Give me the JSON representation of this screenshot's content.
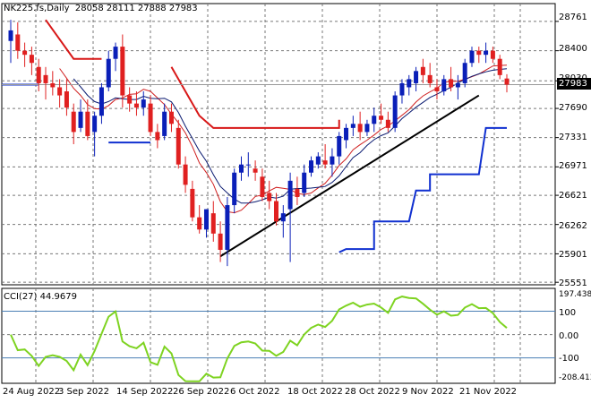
{
  "header": {
    "symbol_line": "NK225.fs,Daily  28058 28111 27888 27983",
    "cci_line": "CCI(27) 44.9679"
  },
  "last_price_label": "27983",
  "chart_data": [
    {
      "type": "candlestick",
      "title": "NK225.fs,Daily",
      "ohlc": {
        "open": 28058,
        "high": 28111,
        "low": 27888,
        "close": 27983
      },
      "y_ticks": [
        "28761",
        "28400",
        "28030",
        "27690",
        "27331",
        "26971",
        "26621",
        "26262",
        "25901",
        "25551"
      ],
      "x_ticks": [
        "24 Aug 2022",
        "3 Sep 2022",
        "14 Sep 2022",
        "26 Sep 2022",
        "6 Oct 2022",
        "18 Oct 2022",
        "28 Oct 2022",
        "9 Nov 2022",
        "21 Nov 2022"
      ],
      "ylim": [
        25520,
        28980
      ],
      "candles": [
        [
          28520,
          28780,
          28250,
          28650
        ],
        [
          28600,
          28750,
          28300,
          28400
        ],
        [
          28400,
          28500,
          28200,
          28350
        ],
        [
          28350,
          28450,
          28100,
          28250
        ],
        [
          28200,
          28300,
          27900,
          28000
        ],
        [
          28100,
          28200,
          27800,
          28000
        ],
        [
          28000,
          28150,
          27850,
          27950
        ],
        [
          27950,
          28050,
          27700,
          27850
        ],
        [
          27900,
          28050,
          27600,
          27700
        ],
        [
          27650,
          27750,
          27250,
          27400
        ],
        [
          27450,
          27800,
          27400,
          27650
        ],
        [
          27650,
          27800,
          27300,
          27350
        ],
        [
          27400,
          27650,
          27100,
          27600
        ],
        [
          27600,
          28000,
          27500,
          27950
        ],
        [
          27950,
          28400,
          27900,
          28300
        ],
        [
          28300,
          28500,
          28150,
          28450
        ],
        [
          28450,
          28600,
          27700,
          27850
        ],
        [
          27850,
          27950,
          27650,
          27750
        ],
        [
          27750,
          27900,
          27600,
          27700
        ],
        [
          27700,
          27900,
          27600,
          27800
        ],
        [
          27750,
          27850,
          27350,
          27400
        ],
        [
          27400,
          27500,
          27200,
          27300
        ],
        [
          27350,
          27750,
          27300,
          27650
        ],
        [
          27650,
          27750,
          27400,
          27500
        ],
        [
          27450,
          27550,
          26950,
          27000
        ],
        [
          27000,
          27100,
          26650,
          26750
        ],
        [
          26700,
          26800,
          26300,
          26350
        ],
        [
          26350,
          26500,
          26150,
          26200
        ],
        [
          26200,
          26450,
          26100,
          26450
        ],
        [
          26400,
          26550,
          26050,
          26150
        ],
        [
          26150,
          26300,
          25800,
          25950
        ],
        [
          25950,
          26600,
          25750,
          26500
        ],
        [
          26500,
          26950,
          26400,
          26900
        ],
        [
          26900,
          27100,
          26800,
          27000
        ],
        [
          27000,
          27150,
          26850,
          27000
        ],
        [
          26950,
          27050,
          26800,
          26900
        ],
        [
          26850,
          26950,
          26550,
          26600
        ],
        [
          26650,
          26800,
          26450,
          26550
        ],
        [
          26550,
          26650,
          26250,
          26300
        ],
        [
          26300,
          26500,
          26100,
          26400
        ],
        [
          26450,
          26900,
          25800,
          26800
        ],
        [
          26700,
          26850,
          26500,
          26600
        ],
        [
          26650,
          27000,
          26600,
          26900
        ],
        [
          26900,
          27100,
          26850,
          27050
        ],
        [
          27000,
          27150,
          26950,
          27100
        ],
        [
          27050,
          27250,
          26950,
          27000
        ],
        [
          27000,
          27200,
          26850,
          27100
        ],
        [
          27100,
          27400,
          27000,
          27350
        ],
        [
          27300,
          27500,
          27200,
          27450
        ],
        [
          27450,
          27600,
          27350,
          27500
        ],
        [
          27500,
          27650,
          27300,
          27400
        ],
        [
          27400,
          27550,
          27350,
          27500
        ],
        [
          27500,
          27700,
          27400,
          27600
        ],
        [
          27600,
          27750,
          27500,
          27550
        ],
        [
          27550,
          27650,
          27400,
          27450
        ],
        [
          27450,
          27900,
          27400,
          27850
        ],
        [
          27850,
          28050,
          27750,
          28000
        ],
        [
          27950,
          28100,
          27850,
          28050
        ],
        [
          28000,
          28200,
          27900,
          28150
        ],
        [
          28200,
          28300,
          28000,
          28100
        ],
        [
          28100,
          28250,
          27950,
          28000
        ],
        [
          27950,
          28050,
          27800,
          27900
        ],
        [
          27900,
          28100,
          27850,
          28050
        ],
        [
          28050,
          28200,
          27900,
          27950
        ],
        [
          27950,
          28100,
          27800,
          28000
        ],
        [
          28000,
          28300,
          27950,
          28250
        ],
        [
          28250,
          28450,
          28200,
          28400
        ],
        [
          28400,
          28450,
          28250,
          28350
        ],
        [
          28350,
          28500,
          28250,
          28400
        ],
        [
          28400,
          28450,
          28250,
          28300
        ],
        [
          28300,
          28350,
          28050,
          28100
        ],
        [
          28058,
          28111,
          27888,
          27983
        ]
      ]
    },
    {
      "type": "line",
      "title": "CCI(27)",
      "value": 44.9679,
      "y_ticks": [
        "197.4382",
        "100",
        "0.00",
        "-100",
        "-208.4136"
      ],
      "levels": [
        100,
        0,
        -100
      ],
      "ylim": [
        -208.4136,
        197.4382
      ]
    }
  ]
}
